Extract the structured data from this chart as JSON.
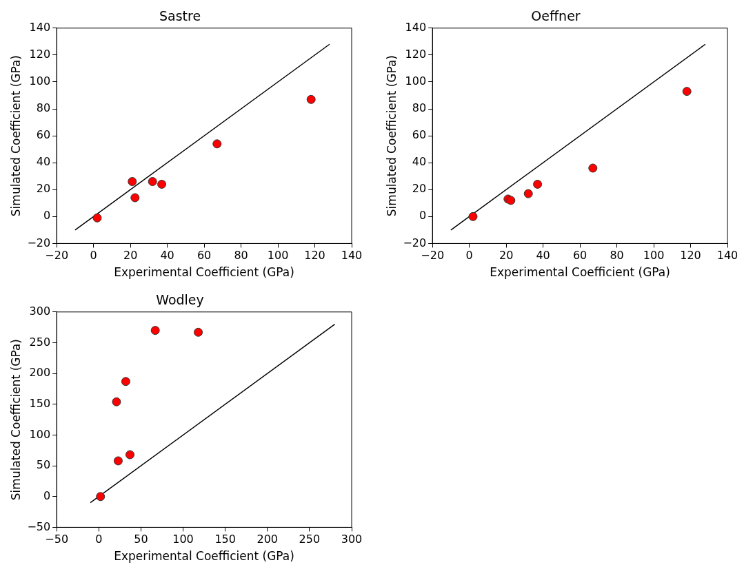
{
  "chart_data": [
    {
      "type": "scatter",
      "title": "Sastre",
      "xlabel": "Experimental Coefficient (GPa)",
      "ylabel": "Simulated Coefficient (GPa)",
      "xlim": [
        -20,
        140
      ],
      "ylim": [
        -20,
        140
      ],
      "xticks": [
        -20,
        0,
        20,
        40,
        60,
        80,
        100,
        120,
        140
      ],
      "yticks": [
        -20,
        0,
        20,
        40,
        60,
        80,
        100,
        120,
        140
      ],
      "series": [
        {
          "type": "scatter",
          "color": "#ff0000",
          "marker": "circle",
          "x": [
            2,
            21,
            22.5,
            32,
            37,
            67,
            118
          ],
          "values": [
            -1,
            26,
            14,
            26,
            24,
            54,
            87
          ]
        },
        {
          "type": "line",
          "color": "#000000",
          "marker": "none",
          "line_style": "solid",
          "x": [
            -10,
            128
          ],
          "values": [
            -10,
            128
          ]
        }
      ]
    },
    {
      "type": "scatter",
      "title": "Oeffner",
      "xlabel": "Experimental Coefficient (GPa)",
      "ylabel": "Simulated Coefficient (GPa)",
      "xlim": [
        -20,
        140
      ],
      "ylim": [
        -20,
        140
      ],
      "xticks": [
        -20,
        0,
        20,
        40,
        60,
        80,
        100,
        120,
        140
      ],
      "yticks": [
        -20,
        0,
        20,
        40,
        60,
        80,
        100,
        120,
        140
      ],
      "series": [
        {
          "type": "scatter",
          "color": "#ff0000",
          "marker": "circle",
          "x": [
            2,
            21,
            22.5,
            32,
            37,
            67,
            118
          ],
          "values": [
            0,
            13,
            12,
            17,
            24,
            36,
            93
          ]
        },
        {
          "type": "line",
          "color": "#000000",
          "marker": "none",
          "line_style": "solid",
          "x": [
            -10,
            128
          ],
          "values": [
            -10,
            128
          ]
        }
      ]
    },
    {
      "type": "scatter",
      "title": "Wodley",
      "xlabel": "Experimental Coefficient (GPa)",
      "ylabel": "Simulated Coefficient (GPa)",
      "xlim": [
        -50,
        300
      ],
      "ylim": [
        -50,
        300
      ],
      "xticks": [
        -50,
        0,
        50,
        100,
        150,
        200,
        250,
        300
      ],
      "yticks": [
        -50,
        0,
        50,
        100,
        150,
        200,
        250,
        300
      ],
      "series": [
        {
          "type": "scatter",
          "color": "#ff0000",
          "marker": "circle",
          "x": [
            2,
            21,
            23,
            32,
            37,
            67,
            118
          ],
          "values": [
            0,
            154,
            58,
            187,
            68,
            270,
            267
          ]
        },
        {
          "type": "line",
          "color": "#000000",
          "marker": "none",
          "line_style": "solid",
          "x": [
            -10,
            280
          ],
          "values": [
            -10,
            280
          ]
        }
      ]
    }
  ]
}
